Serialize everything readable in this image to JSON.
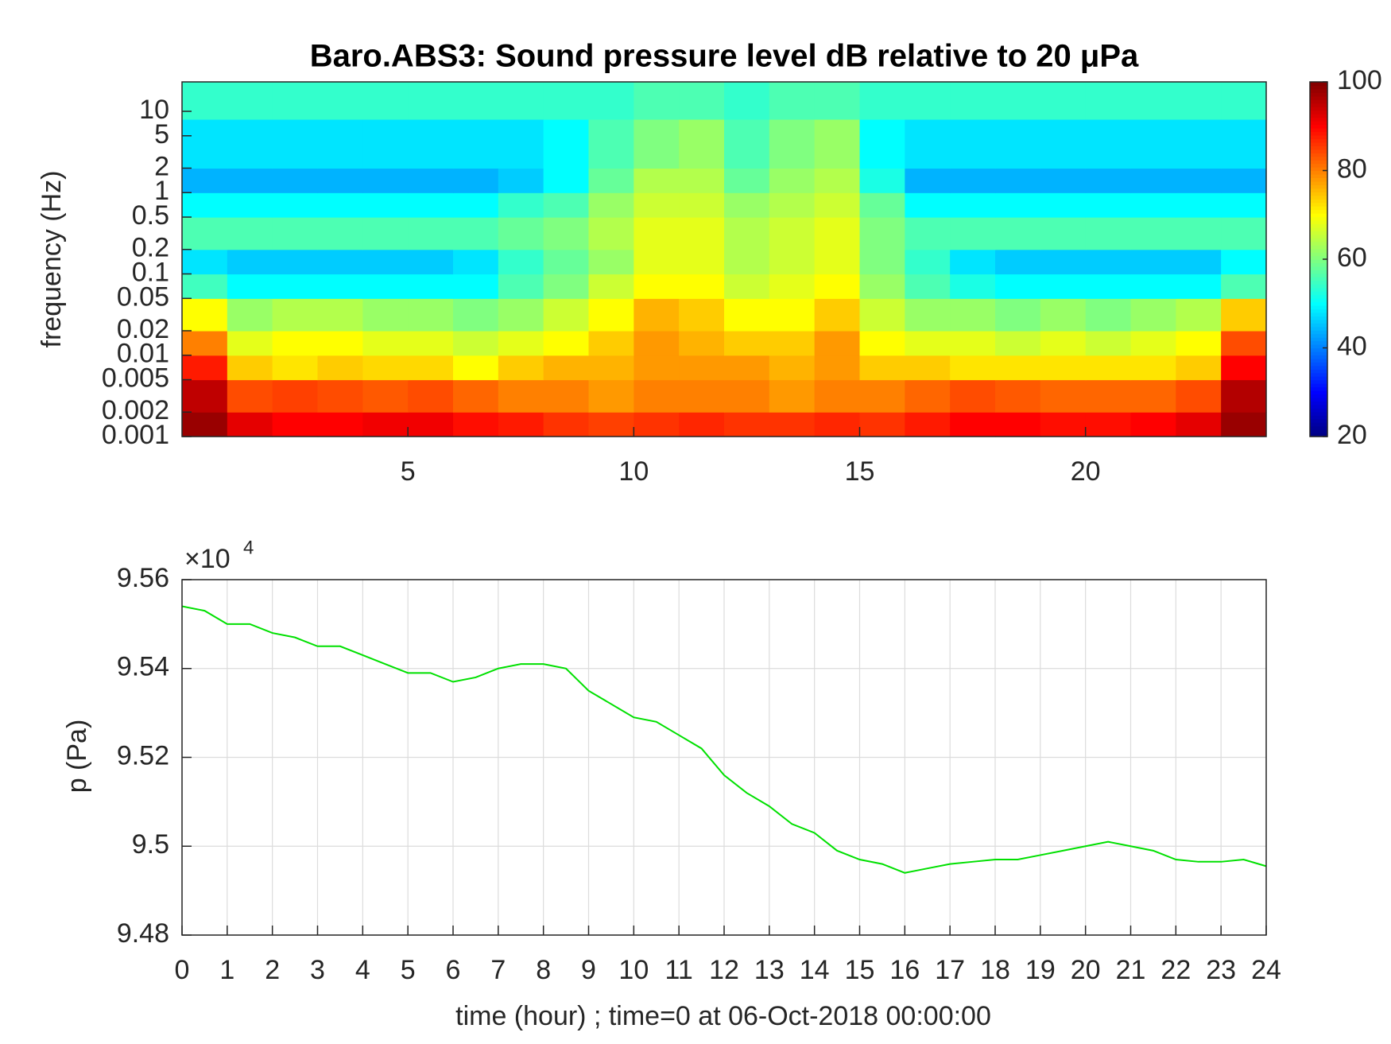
{
  "chart_data": [
    {
      "type": "heatmap",
      "title": "Baro.ABS3: Sound pressure level dB relative to 20 μPa",
      "ylabel": "frequency (Hz)",
      "colormap": "jet",
      "ylog": true,
      "xlim": [
        0,
        24
      ],
      "xticks": [
        5,
        10,
        15,
        20
      ],
      "ylim": [
        0.001,
        23
      ],
      "yticks": [
        0.001,
        0.002,
        0.005,
        0.01,
        0.02,
        0.05,
        0.1,
        0.2,
        0.5,
        1,
        2,
        5,
        10
      ],
      "clim": [
        20,
        100
      ],
      "cticks": [
        20,
        40,
        60,
        80,
        100
      ],
      "x_bins": [
        0,
        1,
        2,
        3,
        4,
        5,
        6,
        7,
        8,
        9,
        10,
        11,
        12,
        13,
        14,
        15,
        16,
        17,
        18,
        19,
        20,
        21,
        22,
        23,
        24
      ],
      "y_bins": [
        0.001,
        0.002,
        0.005,
        0.01,
        0.02,
        0.05,
        0.1,
        0.2,
        0.5,
        1,
        2,
        8,
        23
      ],
      "z": [
        [
          98,
          92,
          90,
          90,
          91,
          91,
          89,
          88,
          86,
          85,
          86,
          87,
          86,
          86,
          87,
          86,
          88,
          90,
          90,
          89,
          89,
          90,
          92,
          98
        ],
        [
          95,
          84,
          85,
          84,
          83,
          84,
          82,
          80,
          80,
          78,
          80,
          80,
          80,
          78,
          80,
          80,
          82,
          84,
          83,
          82,
          82,
          82,
          84,
          96
        ],
        [
          88,
          74,
          72,
          74,
          73,
          73,
          70,
          74,
          76,
          76,
          78,
          78,
          78,
          76,
          78,
          74,
          74,
          72,
          72,
          72,
          72,
          72,
          74,
          90
        ],
        [
          80,
          68,
          70,
          70,
          68,
          68,
          66,
          68,
          70,
          74,
          78,
          76,
          74,
          74,
          78,
          70,
          68,
          68,
          66,
          68,
          66,
          68,
          70,
          84
        ],
        [
          70,
          62,
          64,
          64,
          62,
          62,
          60,
          62,
          66,
          70,
          76,
          74,
          70,
          70,
          74,
          66,
          62,
          62,
          60,
          62,
          60,
          62,
          64,
          74
        ],
        [
          55,
          50,
          50,
          50,
          50,
          50,
          50,
          56,
          60,
          66,
          70,
          70,
          66,
          68,
          70,
          62,
          56,
          52,
          50,
          50,
          50,
          50,
          50,
          56
        ],
        [
          48,
          46,
          46,
          46,
          46,
          46,
          48,
          54,
          58,
          62,
          68,
          68,
          64,
          66,
          68,
          60,
          54,
          48,
          46,
          46,
          46,
          46,
          46,
          50
        ],
        [
          56,
          56,
          56,
          56,
          56,
          56,
          56,
          58,
          60,
          64,
          68,
          68,
          64,
          66,
          68,
          60,
          56,
          56,
          56,
          56,
          56,
          56,
          56,
          56
        ],
        [
          50,
          50,
          50,
          50,
          50,
          50,
          50,
          54,
          56,
          62,
          66,
          66,
          62,
          64,
          66,
          58,
          50,
          50,
          50,
          50,
          50,
          50,
          50,
          50
        ],
        [
          44,
          44,
          44,
          44,
          44,
          44,
          44,
          46,
          50,
          58,
          64,
          64,
          58,
          62,
          64,
          52,
          44,
          44,
          44,
          44,
          44,
          44,
          44,
          44
        ],
        [
          48,
          48,
          48,
          48,
          48,
          48,
          48,
          48,
          50,
          56,
          60,
          62,
          56,
          60,
          62,
          50,
          48,
          48,
          48,
          48,
          48,
          48,
          48,
          48
        ],
        [
          54,
          54,
          54,
          54,
          54,
          54,
          54,
          54,
          54,
          54,
          56,
          56,
          54,
          56,
          56,
          54,
          54,
          54,
          54,
          54,
          54,
          54,
          54,
          54
        ]
      ]
    },
    {
      "type": "line",
      "xlabel": "time (hour) ; time=0 at 06-Oct-2018 00:00:00",
      "ylabel": "p (Pa)",
      "y_multiplier": "×10",
      "y_multiplier_exponent": "4",
      "color": "#00e000",
      "grid": true,
      "xlim": [
        0,
        24
      ],
      "xticks": [
        0,
        1,
        2,
        3,
        4,
        5,
        6,
        7,
        8,
        9,
        10,
        11,
        12,
        13,
        14,
        15,
        16,
        17,
        18,
        19,
        20,
        21,
        22,
        23,
        24
      ],
      "ylim": [
        9.48,
        9.56
      ],
      "yticks": [
        9.48,
        9.5,
        9.52,
        9.54,
        9.56
      ],
      "x": [
        0,
        0.5,
        1,
        1.5,
        2,
        2.5,
        3,
        3.5,
        4,
        4.5,
        5,
        5.5,
        6,
        6.5,
        7,
        7.5,
        8,
        8.5,
        9,
        9.5,
        10,
        10.5,
        11,
        11.5,
        12,
        12.5,
        13,
        13.5,
        14,
        14.5,
        15,
        15.5,
        16,
        16.5,
        17,
        17.5,
        18,
        18.5,
        19,
        19.5,
        20,
        20.5,
        21,
        21.5,
        22,
        22.5,
        23,
        23.5,
        24
      ],
      "values": [
        9.554,
        9.553,
        9.55,
        9.55,
        9.548,
        9.547,
        9.545,
        9.545,
        9.543,
        9.541,
        9.539,
        9.539,
        9.537,
        9.538,
        9.54,
        9.541,
        9.541,
        9.54,
        9.535,
        9.532,
        9.529,
        9.528,
        9.525,
        9.522,
        9.516,
        9.512,
        9.509,
        9.505,
        9.503,
        9.499,
        9.497,
        9.496,
        9.494,
        9.495,
        9.496,
        9.4965,
        9.497,
        9.497,
        9.498,
        9.499,
        9.5,
        9.501,
        9.5,
        9.499,
        9.497,
        9.4965,
        9.4965,
        9.497,
        9.4955
      ]
    }
  ]
}
